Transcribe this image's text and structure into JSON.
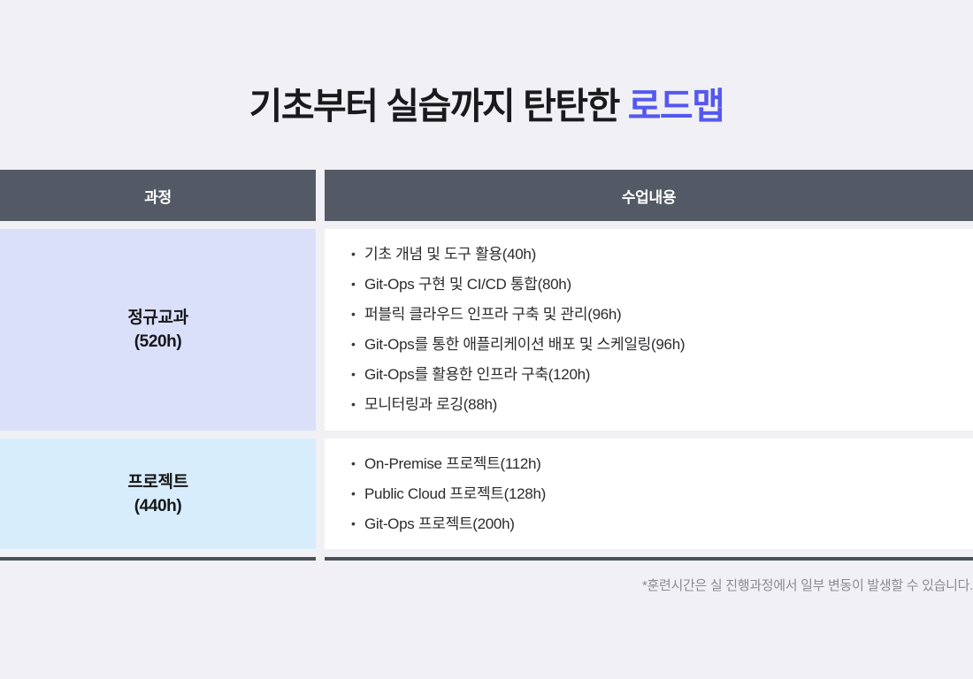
{
  "title": {
    "prefix": "기초부터 실습까지 탄탄한 ",
    "highlight": "로드맵"
  },
  "table": {
    "headers": {
      "course": "과정",
      "content": "수업내용"
    },
    "rows": [
      {
        "course_name": "정규교과",
        "course_hours": "(520h)",
        "items": [
          "기초 개념 및 도구 활용(40h)",
          "Git-Ops 구현 및 CI/CD 통합(80h)",
          "퍼블릭 클라우드 인프라 구축 및 관리(96h)",
          "Git-Ops를 통한 애플리케이션 배포 및 스케일링(96h)",
          "Git-Ops를 활용한 인프라 구축(120h)",
          "모니터링과 로깅(88h)"
        ]
      },
      {
        "course_name": "프로젝트",
        "course_hours": "(440h)",
        "items": [
          "On-Premise 프로젝트(112h)",
          "Public Cloud 프로젝트(128h)",
          "Git-Ops 프로젝트(200h)"
        ]
      }
    ]
  },
  "footnote": "*훈련시간은 실 진행과정에서 일부 변동이 발생할 수 있습니다.",
  "colors": {
    "accent": "#5558EF",
    "header_bg": "#545A65",
    "row1_bg": "#DBE0FA",
    "row2_bg": "#D8EDFC",
    "line": "#495059",
    "page_bg": "#F1F0F5"
  }
}
